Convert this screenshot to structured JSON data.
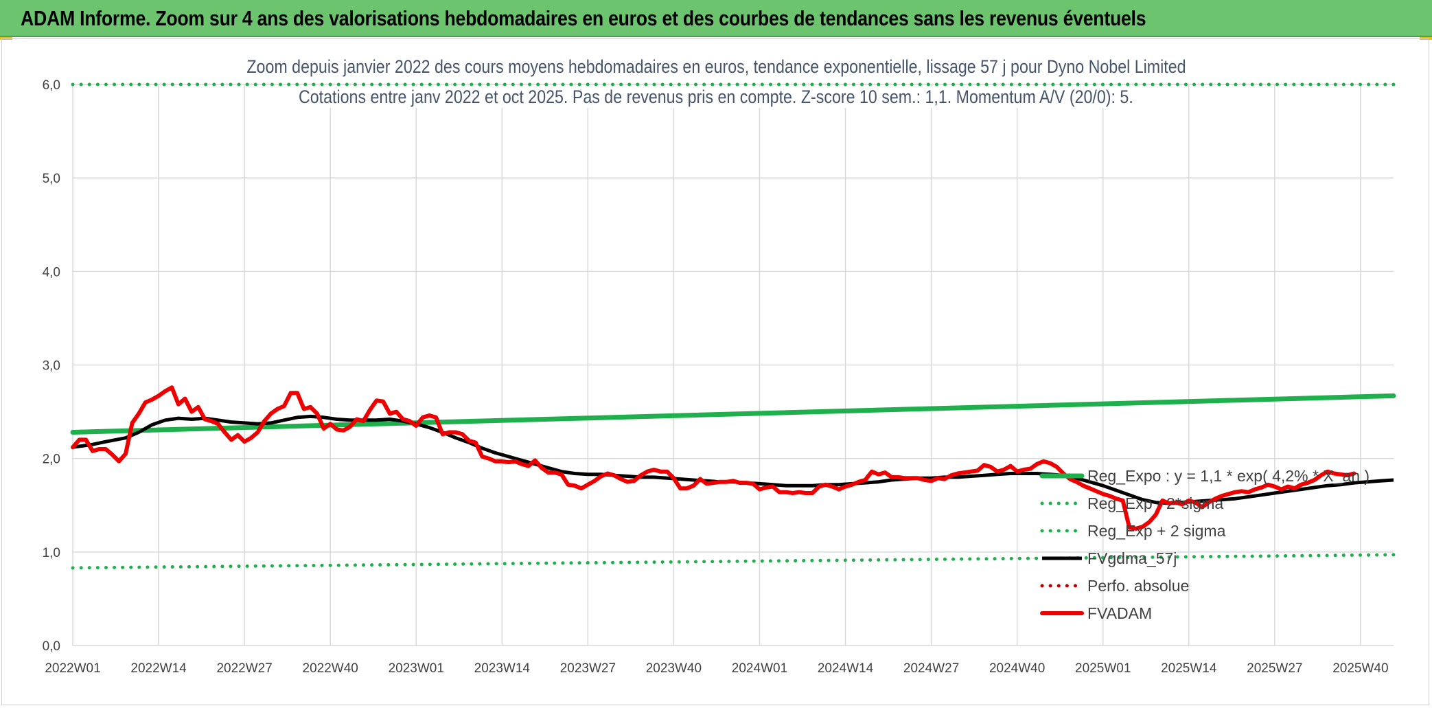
{
  "banner": {
    "title": "ADAM Informe. Zoom sur 4 ans des valorisations hebdomadaires en euros et des courbes de tendances sans les revenus éventuels"
  },
  "colors": {
    "banner": "#6cc46f",
    "regression": "#1fb04d",
    "sigma_bands": "#1fb04d",
    "smoothing": "#000000",
    "perfo": "#c00000",
    "price": "#ee0000"
  },
  "chart_data": {
    "type": "line",
    "title": "Zoom depuis janvier 2022 des cours moyens hebdomadaires en euros, tendance exponentielle, lissage 57 j pour Dyno Nobel Limited",
    "subtitle": "Cotations entre janv 2022 et oct 2025. Pas de revenus pris en compte. Z-score 10 sem.: 1,1. Momentum A/V (20/0): 5.",
    "xlabel": "",
    "ylabel": "",
    "ylim": [
      0,
      6
    ],
    "yticks": [
      "0,0",
      "1,0",
      "2,0",
      "3,0",
      "4,0",
      "5,0",
      "6,0"
    ],
    "xticks": [
      "2022W01",
      "2022W14",
      "2022W27",
      "2022W40",
      "2023W01",
      "2023W14",
      "2023W27",
      "2023W40",
      "2024W01",
      "2024W14",
      "2024W27",
      "2024W40",
      "2025W01",
      "2025W14",
      "2025W27",
      "2025W40"
    ],
    "x_range_weeks": [
      0,
      200
    ],
    "grid": true,
    "legend_position": "bottom-right",
    "series": [
      {
        "name": "Reg_Expo : y = 1,1 * exp( 4,2% *  X_an )",
        "style": "solid-thick",
        "color": "#1fb04d",
        "points": [
          [
            0,
            2.28
          ],
          [
            200,
            2.67
          ]
        ]
      },
      {
        "name": "Reg_Exp - 2*sigma",
        "style": "dotted",
        "color": "#1fb04d",
        "points": [
          [
            0,
            0.83
          ],
          [
            200,
            0.97
          ]
        ]
      },
      {
        "name": "Reg_Exp + 2 sigma",
        "style": "dotted",
        "color": "#1fb04d",
        "points": [
          [
            0,
            6.0
          ],
          [
            200,
            6.0
          ]
        ]
      },
      {
        "name": "FVgdma_57j",
        "style": "solid",
        "color": "#000000",
        "points": [
          [
            0,
            2.12
          ],
          [
            3,
            2.15
          ],
          [
            5,
            2.18
          ],
          [
            8,
            2.22
          ],
          [
            10,
            2.28
          ],
          [
            12,
            2.36
          ],
          [
            14,
            2.41
          ],
          [
            16,
            2.43
          ],
          [
            18,
            2.42
          ],
          [
            20,
            2.43
          ],
          [
            22,
            2.41
          ],
          [
            24,
            2.39
          ],
          [
            26,
            2.38
          ],
          [
            28,
            2.37
          ],
          [
            30,
            2.38
          ],
          [
            32,
            2.41
          ],
          [
            34,
            2.44
          ],
          [
            36,
            2.45
          ],
          [
            38,
            2.44
          ],
          [
            40,
            2.42
          ],
          [
            42,
            2.41
          ],
          [
            44,
            2.41
          ],
          [
            46,
            2.41
          ],
          [
            48,
            2.42
          ],
          [
            50,
            2.4
          ],
          [
            52,
            2.37
          ],
          [
            54,
            2.33
          ],
          [
            56,
            2.28
          ],
          [
            58,
            2.22
          ],
          [
            60,
            2.17
          ],
          [
            62,
            2.11
          ],
          [
            64,
            2.06
          ],
          [
            66,
            2.02
          ],
          [
            68,
            1.98
          ],
          [
            70,
            1.94
          ],
          [
            72,
            1.9
          ],
          [
            74,
            1.86
          ],
          [
            76,
            1.84
          ],
          [
            78,
            1.83
          ],
          [
            80,
            1.83
          ],
          [
            82,
            1.82
          ],
          [
            84,
            1.81
          ],
          [
            86,
            1.8
          ],
          [
            88,
            1.8
          ],
          [
            90,
            1.79
          ],
          [
            92,
            1.78
          ],
          [
            94,
            1.77
          ],
          [
            96,
            1.76
          ],
          [
            98,
            1.75
          ],
          [
            100,
            1.75
          ],
          [
            102,
            1.74
          ],
          [
            104,
            1.73
          ],
          [
            106,
            1.72
          ],
          [
            108,
            1.71
          ],
          [
            110,
            1.71
          ],
          [
            112,
            1.71
          ],
          [
            114,
            1.72
          ],
          [
            116,
            1.72
          ],
          [
            118,
            1.73
          ],
          [
            120,
            1.74
          ],
          [
            122,
            1.75
          ],
          [
            124,
            1.77
          ],
          [
            126,
            1.78
          ],
          [
            128,
            1.79
          ],
          [
            130,
            1.79
          ],
          [
            132,
            1.8
          ],
          [
            134,
            1.8
          ],
          [
            136,
            1.81
          ],
          [
            138,
            1.82
          ],
          [
            140,
            1.83
          ],
          [
            142,
            1.84
          ],
          [
            144,
            1.84
          ],
          [
            146,
            1.84
          ],
          [
            148,
            1.83
          ],
          [
            150,
            1.82
          ],
          [
            152,
            1.79
          ],
          [
            154,
            1.75
          ],
          [
            156,
            1.71
          ],
          [
            158,
            1.66
          ],
          [
            160,
            1.61
          ],
          [
            162,
            1.56
          ],
          [
            164,
            1.53
          ],
          [
            166,
            1.52
          ],
          [
            168,
            1.53
          ],
          [
            170,
            1.54
          ],
          [
            172,
            1.55
          ],
          [
            174,
            1.56
          ],
          [
            176,
            1.57
          ],
          [
            178,
            1.59
          ],
          [
            180,
            1.61
          ],
          [
            182,
            1.63
          ],
          [
            184,
            1.65
          ],
          [
            186,
            1.67
          ],
          [
            188,
            1.69
          ],
          [
            190,
            1.71
          ],
          [
            192,
            1.72
          ],
          [
            194,
            1.74
          ],
          [
            196,
            1.75
          ],
          [
            198,
            1.76
          ],
          [
            200,
            1.77
          ]
        ]
      },
      {
        "name": "Perfo. absolue",
        "style": "dotted",
        "color": "#c00000",
        "points": []
      },
      {
        "name": "FVADAM",
        "style": "solid-thick",
        "color": "#ee0000",
        "points": [
          [
            0,
            2.12
          ],
          [
            1,
            2.2
          ],
          [
            2,
            2.2
          ],
          [
            3,
            2.08
          ],
          [
            4,
            2.1
          ],
          [
            5,
            2.1
          ],
          [
            6,
            2.04
          ],
          [
            7,
            1.97
          ],
          [
            8,
            2.05
          ],
          [
            9,
            2.38
          ],
          [
            10,
            2.48
          ],
          [
            11,
            2.6
          ],
          [
            12,
            2.63
          ],
          [
            13,
            2.67
          ],
          [
            14,
            2.72
          ],
          [
            15,
            2.76
          ],
          [
            16,
            2.58
          ],
          [
            17,
            2.64
          ],
          [
            18,
            2.5
          ],
          [
            19,
            2.55
          ],
          [
            20,
            2.42
          ],
          [
            21,
            2.4
          ],
          [
            22,
            2.37
          ],
          [
            23,
            2.28
          ],
          [
            24,
            2.2
          ],
          [
            25,
            2.25
          ],
          [
            26,
            2.18
          ],
          [
            27,
            2.22
          ],
          [
            28,
            2.28
          ],
          [
            29,
            2.4
          ],
          [
            30,
            2.48
          ],
          [
            31,
            2.53
          ],
          [
            32,
            2.56
          ],
          [
            33,
            2.7
          ],
          [
            34,
            2.7
          ],
          [
            35,
            2.53
          ],
          [
            36,
            2.55
          ],
          [
            37,
            2.48
          ],
          [
            38,
            2.32
          ],
          [
            39,
            2.37
          ],
          [
            40,
            2.31
          ],
          [
            41,
            2.3
          ],
          [
            42,
            2.34
          ],
          [
            43,
            2.42
          ],
          [
            44,
            2.4
          ],
          [
            45,
            2.52
          ],
          [
            46,
            2.62
          ],
          [
            47,
            2.61
          ],
          [
            48,
            2.48
          ],
          [
            49,
            2.5
          ],
          [
            50,
            2.42
          ],
          [
            51,
            2.4
          ],
          [
            52,
            2.35
          ],
          [
            53,
            2.44
          ],
          [
            54,
            2.46
          ],
          [
            55,
            2.44
          ],
          [
            56,
            2.26
          ],
          [
            57,
            2.28
          ],
          [
            58,
            2.28
          ],
          [
            59,
            2.26
          ],
          [
            60,
            2.19
          ],
          [
            61,
            2.17
          ],
          [
            62,
            2.02
          ],
          [
            63,
            2.0
          ],
          [
            64,
            1.97
          ],
          [
            65,
            1.97
          ],
          [
            66,
            1.96
          ],
          [
            67,
            1.97
          ],
          [
            68,
            1.94
          ],
          [
            69,
            1.92
          ],
          [
            70,
            1.98
          ],
          [
            71,
            1.9
          ],
          [
            72,
            1.85
          ],
          [
            73,
            1.85
          ],
          [
            74,
            1.83
          ],
          [
            75,
            1.72
          ],
          [
            76,
            1.71
          ],
          [
            77,
            1.68
          ],
          [
            78,
            1.72
          ],
          [
            79,
            1.76
          ],
          [
            80,
            1.81
          ],
          [
            81,
            1.84
          ],
          [
            82,
            1.82
          ],
          [
            83,
            1.78
          ],
          [
            84,
            1.75
          ],
          [
            85,
            1.76
          ],
          [
            86,
            1.82
          ],
          [
            87,
            1.86
          ],
          [
            88,
            1.88
          ],
          [
            89,
            1.86
          ],
          [
            90,
            1.86
          ],
          [
            91,
            1.79
          ],
          [
            92,
            1.68
          ],
          [
            93,
            1.68
          ],
          [
            94,
            1.71
          ],
          [
            95,
            1.78
          ],
          [
            96,
            1.73
          ],
          [
            97,
            1.74
          ],
          [
            98,
            1.75
          ],
          [
            99,
            1.75
          ],
          [
            100,
            1.76
          ],
          [
            101,
            1.74
          ],
          [
            102,
            1.74
          ],
          [
            103,
            1.73
          ],
          [
            104,
            1.67
          ],
          [
            105,
            1.69
          ],
          [
            106,
            1.7
          ],
          [
            107,
            1.64
          ],
          [
            108,
            1.64
          ],
          [
            109,
            1.63
          ],
          [
            110,
            1.64
          ],
          [
            111,
            1.63
          ],
          [
            112,
            1.63
          ],
          [
            113,
            1.7
          ],
          [
            114,
            1.72
          ],
          [
            115,
            1.7
          ],
          [
            116,
            1.67
          ],
          [
            117,
            1.7
          ],
          [
            118,
            1.72
          ],
          [
            119,
            1.75
          ],
          [
            120,
            1.77
          ],
          [
            121,
            1.86
          ],
          [
            122,
            1.83
          ],
          [
            123,
            1.85
          ],
          [
            124,
            1.8
          ],
          [
            125,
            1.8
          ],
          [
            126,
            1.79
          ],
          [
            127,
            1.79
          ],
          [
            128,
            1.79
          ],
          [
            129,
            1.77
          ],
          [
            130,
            1.76
          ],
          [
            131,
            1.79
          ],
          [
            132,
            1.78
          ],
          [
            133,
            1.82
          ],
          [
            134,
            1.84
          ],
          [
            135,
            1.85
          ],
          [
            136,
            1.86
          ],
          [
            137,
            1.87
          ],
          [
            138,
            1.93
          ],
          [
            139,
            1.91
          ],
          [
            140,
            1.86
          ],
          [
            141,
            1.88
          ],
          [
            142,
            1.92
          ],
          [
            143,
            1.86
          ],
          [
            144,
            1.88
          ],
          [
            145,
            1.89
          ],
          [
            146,
            1.94
          ],
          [
            147,
            1.97
          ],
          [
            148,
            1.95
          ],
          [
            149,
            1.91
          ],
          [
            150,
            1.84
          ],
          [
            151,
            1.78
          ],
          [
            152,
            1.75
          ],
          [
            153,
            1.71
          ],
          [
            154,
            1.68
          ],
          [
            155,
            1.65
          ],
          [
            156,
            1.62
          ],
          [
            157,
            1.6
          ],
          [
            158,
            1.57
          ],
          [
            159,
            1.55
          ],
          [
            160,
            1.26
          ],
          [
            161,
            1.25
          ],
          [
            162,
            1.27
          ],
          [
            163,
            1.32
          ],
          [
            164,
            1.4
          ],
          [
            165,
            1.55
          ],
          [
            166,
            1.52
          ],
          [
            167,
            1.53
          ],
          [
            168,
            1.51
          ],
          [
            169,
            1.55
          ],
          [
            170,
            1.53
          ],
          [
            171,
            1.48
          ],
          [
            172,
            1.53
          ],
          [
            173,
            1.57
          ],
          [
            174,
            1.6
          ],
          [
            175,
            1.62
          ],
          [
            176,
            1.64
          ],
          [
            177,
            1.65
          ],
          [
            178,
            1.64
          ],
          [
            179,
            1.67
          ],
          [
            180,
            1.69
          ],
          [
            181,
            1.72
          ],
          [
            182,
            1.7
          ],
          [
            183,
            1.67
          ],
          [
            184,
            1.7
          ],
          [
            185,
            1.68
          ],
          [
            186,
            1.72
          ],
          [
            187,
            1.74
          ],
          [
            188,
            1.77
          ],
          [
            189,
            1.82
          ],
          [
            190,
            1.86
          ],
          [
            191,
            1.84
          ],
          [
            192,
            1.83
          ],
          [
            193,
            1.82
          ],
          [
            194,
            1.84
          ]
        ]
      }
    ]
  }
}
